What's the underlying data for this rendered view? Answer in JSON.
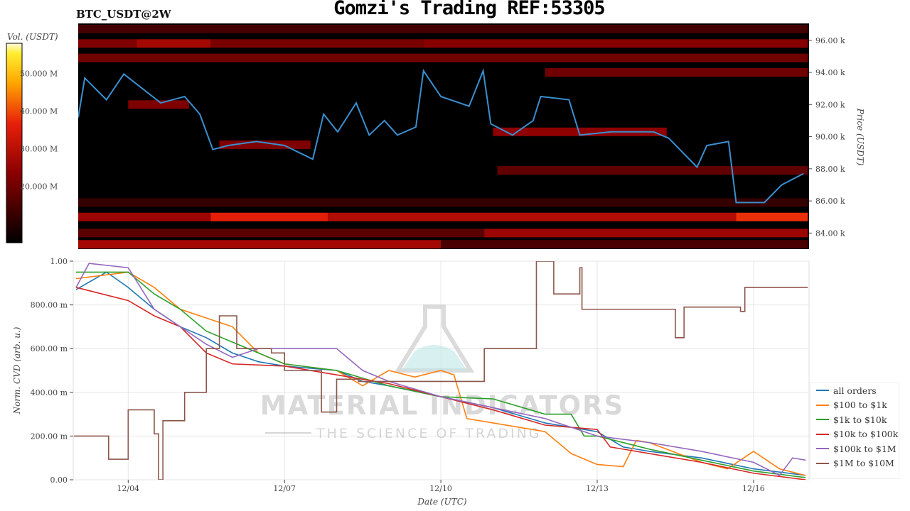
{
  "title": "Gomzi's Trading REF:53305",
  "subtitle": "BTC_USDT@2W",
  "watermark": {
    "line1": "MATERIAL INDICATORS",
    "line2": "THE SCIENCE OF TRADING"
  },
  "chart_data": [
    {
      "type": "heatmap",
      "name": "orderbook-heatmap",
      "ylabel": "Price (USDT)",
      "colorbar_label": "Vol. (USDT)",
      "colorbar_ticks": [
        "50.000 M",
        "40.000 M",
        "30.000 M",
        "20.000 M"
      ],
      "colorbar_tick_values": [
        50,
        40,
        30,
        20
      ],
      "colorbar_range": [
        5,
        58
      ],
      "xlim": [
        "12/03 00:00",
        "12/17 01:00"
      ],
      "ylim": [
        83.0,
        97.05
      ],
      "yticks": [
        84,
        86,
        88,
        90,
        92,
        94,
        96
      ],
      "ytick_labels": [
        "84.00 k",
        "86.00 k",
        "88.00 k",
        "90.00 k",
        "92.00 k",
        "94.00 k",
        "96.00 k"
      ],
      "line_color": "#3a8fd0",
      "bands": [
        {
          "price": 96.7,
          "from": "12/03 00:00",
          "to": "12/17 01:00",
          "vol": 14
        },
        {
          "price": 95.8,
          "from": "12/03 00:00",
          "to": "12/04 04:00",
          "vol": 22
        },
        {
          "price": 95.8,
          "from": "12/04 04:00",
          "to": "12/05 14:00",
          "vol": 27
        },
        {
          "price": 95.8,
          "from": "12/05 14:00",
          "to": "12/09 16:00",
          "vol": 21
        },
        {
          "price": 95.8,
          "from": "12/09 16:00",
          "to": "12/17 01:00",
          "vol": 23
        },
        {
          "price": 94.9,
          "from": "12/03 00:00",
          "to": "12/17 01:00",
          "vol": 20
        },
        {
          "price": 94.0,
          "from": "12/12 00:00",
          "to": "12/17 01:00",
          "vol": 20
        },
        {
          "price": 92.0,
          "from": "12/04 00:00",
          "to": "12/05 04:00",
          "vol": 22
        },
        {
          "price": 90.3,
          "from": "12/11 00:00",
          "to": "12/14 08:00",
          "vol": 24
        },
        {
          "price": 89.5,
          "from": "12/05 18:00",
          "to": "12/07 12:00",
          "vol": 22
        },
        {
          "price": 87.9,
          "from": "12/11 02:00",
          "to": "12/17 01:00",
          "vol": 18
        },
        {
          "price": 85.9,
          "from": "12/03 00:00",
          "to": "12/17 01:00",
          "vol": 12
        },
        {
          "price": 85.0,
          "from": "12/03 00:00",
          "to": "12/05 14:00",
          "vol": 26
        },
        {
          "price": 85.0,
          "from": "12/05 14:00",
          "to": "12/07 20:00",
          "vol": 36
        },
        {
          "price": 85.0,
          "from": "12/07 20:00",
          "to": "12/15 16:00",
          "vol": 29
        },
        {
          "price": 85.0,
          "from": "12/15 16:00",
          "to": "12/17 01:00",
          "vol": 38
        },
        {
          "price": 84.0,
          "from": "12/03 00:00",
          "to": "12/10 20:00",
          "vol": 17
        },
        {
          "price": 84.0,
          "from": "12/10 20:00",
          "to": "12/17 01:00",
          "vol": 26
        },
        {
          "price": 83.3,
          "from": "12/03 00:00",
          "to": "12/10 00:00",
          "vol": 27
        },
        {
          "price": 83.3,
          "from": "12/10 00:00",
          "to": "12/17 01:00",
          "vol": 15
        }
      ],
      "price_line": [
        [
          "12/03 01:00",
          91.2
        ],
        [
          "12/03 04:00",
          93.65
        ],
        [
          "12/03 14:00",
          92.3
        ],
        [
          "12/03 22:00",
          93.9
        ],
        [
          "12/04 06:30",
          93.0
        ],
        [
          "12/04 15:00",
          92.1
        ],
        [
          "12/05 02:00",
          92.5
        ],
        [
          "12/05 09:00",
          91.4
        ],
        [
          "12/05 15:00",
          89.2
        ],
        [
          "12/05 22:00",
          89.45
        ],
        [
          "12/06 11:00",
          89.7
        ],
        [
          "12/07 00:00",
          89.45
        ],
        [
          "12/07 13:00",
          88.6
        ],
        [
          "12/07 18:00",
          91.4
        ],
        [
          "12/08 00:30",
          90.3
        ],
        [
          "12/08 09:00",
          92.1
        ],
        [
          "12/08 15:00",
          90.1
        ],
        [
          "12/08 22:00",
          91.0
        ],
        [
          "12/09 04:00",
          90.1
        ],
        [
          "12/09 12:30",
          90.6
        ],
        [
          "12/09 16:00",
          94.1
        ],
        [
          "12/10 00:00",
          92.5
        ],
        [
          "12/10 13:00",
          91.9
        ],
        [
          "12/10 19:30",
          94.1
        ],
        [
          "12/10 23:00",
          90.8
        ],
        [
          "12/11 09:00",
          90.1
        ],
        [
          "12/11 18:30",
          91.0
        ],
        [
          "12/11 22:00",
          92.5
        ],
        [
          "12/12 11:00",
          92.3
        ],
        [
          "12/12 16:00",
          90.1
        ],
        [
          "12/13 06:30",
          90.3
        ],
        [
          "12/14 02:00",
          90.3
        ],
        [
          "12/14 09:00",
          89.9
        ],
        [
          "12/14 22:00",
          88.1
        ],
        [
          "12/15 02:30",
          89.45
        ],
        [
          "12/15 12:30",
          89.7
        ],
        [
          "12/15 16:00",
          85.9
        ],
        [
          "12/16 05:00",
          85.9
        ],
        [
          "12/16 13:00",
          87.0
        ],
        [
          "12/16 23:00",
          87.7
        ]
      ]
    },
    {
      "type": "line",
      "name": "cvd-chart",
      "xlabel": "Date (UTC)",
      "ylabel": "Norm. CVD (arb. u.)",
      "xlim": [
        "12/02 23:00",
        "12/17 01:00"
      ],
      "ylim": [
        0,
        1
      ],
      "xticks": [
        "12/04 00:00",
        "12/07 00:00",
        "12/10 00:00",
        "12/13 00:00",
        "12/16 00:00"
      ],
      "xtick_labels": [
        "12/04",
        "12/07",
        "12/10",
        "12/13",
        "12/16"
      ],
      "yticks": [
        0,
        0.2,
        0.4,
        0.6,
        0.8,
        1.0
      ],
      "ytick_labels": [
        "0.00",
        "200.00 m",
        "400.00 m",
        "600.00 m",
        "800.00 m",
        "1.00"
      ],
      "grid": true,
      "legend": "right",
      "series": [
        {
          "name": "all orders",
          "color": "#1f77b4",
          "points": [
            [
              "12/03 00:00",
              0.87
            ],
            [
              "12/03 14:00",
              0.95
            ],
            [
              "12/04 00:00",
              0.88
            ],
            [
              "12/04 12:00",
              0.78
            ],
            [
              "12/05 00:00",
              0.7
            ],
            [
              "12/05 12:00",
              0.65
            ],
            [
              "12/06 00:00",
              0.58
            ],
            [
              "12/06 12:00",
              0.54
            ],
            [
              "12/07 00:00",
              0.52
            ],
            [
              "12/08 00:00",
              0.5
            ],
            [
              "12/08 12:00",
              0.45
            ],
            [
              "12/09 00:00",
              0.43
            ],
            [
              "12/10 00:00",
              0.38
            ],
            [
              "12/11 00:00",
              0.33
            ],
            [
              "12/12 00:00",
              0.26
            ],
            [
              "12/13 00:00",
              0.22
            ],
            [
              "12/13 12:00",
              0.15
            ],
            [
              "12/14 00:00",
              0.13
            ],
            [
              "12/15 00:00",
              0.1
            ],
            [
              "12/16 00:00",
              0.05
            ],
            [
              "12/17 00:00",
              0.02
            ]
          ]
        },
        {
          "name": "$100 to $1k",
          "color": "#ff7f0e",
          "points": [
            [
              "12/03 00:00",
              0.92
            ],
            [
              "12/04 00:00",
              0.95
            ],
            [
              "12/04 12:00",
              0.88
            ],
            [
              "12/05 00:00",
              0.78
            ],
            [
              "12/06 00:00",
              0.7
            ],
            [
              "12/06 12:00",
              0.58
            ],
            [
              "12/07 00:00",
              0.53
            ],
            [
              "12/08 00:00",
              0.5
            ],
            [
              "12/08 12:00",
              0.43
            ],
            [
              "12/09 00:00",
              0.5
            ],
            [
              "12/09 12:00",
              0.47
            ],
            [
              "12/10 00:00",
              0.5
            ],
            [
              "12/10 06:00",
              0.48
            ],
            [
              "12/10 12:00",
              0.28
            ],
            [
              "12/11 00:00",
              0.26
            ],
            [
              "12/12 00:00",
              0.22
            ],
            [
              "12/12 12:00",
              0.12
            ],
            [
              "12/13 00:00",
              0.07
            ],
            [
              "12/13 12:00",
              0.06
            ],
            [
              "12/13 18:00",
              0.18
            ],
            [
              "12/14 00:00",
              0.17
            ],
            [
              "12/15 00:00",
              0.08
            ],
            [
              "12/15 12:00",
              0.05
            ],
            [
              "12/16 00:00",
              0.13
            ],
            [
              "12/16 12:00",
              0.05
            ],
            [
              "12/17 00:00",
              0.02
            ]
          ]
        },
        {
          "name": "$1k to $10k",
          "color": "#2ca02c",
          "points": [
            [
              "12/03 00:00",
              0.95
            ],
            [
              "12/04 00:00",
              0.95
            ],
            [
              "12/04 12:00",
              0.85
            ],
            [
              "12/05 00:00",
              0.78
            ],
            [
              "12/05 12:00",
              0.68
            ],
            [
              "12/06 00:00",
              0.63
            ],
            [
              "12/06 12:00",
              0.58
            ],
            [
              "12/07 00:00",
              0.53
            ],
            [
              "12/08 00:00",
              0.5
            ],
            [
              "12/09 00:00",
              0.43
            ],
            [
              "12/10 00:00",
              0.38
            ],
            [
              "12/11 00:00",
              0.37
            ],
            [
              "12/12 00:00",
              0.3
            ],
            [
              "12/12 12:00",
              0.3
            ],
            [
              "12/12 18:00",
              0.2
            ],
            [
              "12/13 00:00",
              0.2
            ],
            [
              "12/14 00:00",
              0.14
            ],
            [
              "12/15 00:00",
              0.09
            ],
            [
              "12/16 00:00",
              0.04
            ],
            [
              "12/17 00:00",
              0.01
            ]
          ]
        },
        {
          "name": "$10k to $100k",
          "color": "#d62728",
          "points": [
            [
              "12/03 00:00",
              0.88
            ],
            [
              "12/04 00:00",
              0.82
            ],
            [
              "12/04 12:00",
              0.75
            ],
            [
              "12/05 00:00",
              0.7
            ],
            [
              "12/05 12:00",
              0.58
            ],
            [
              "12/06 00:00",
              0.53
            ],
            [
              "12/07 00:00",
              0.52
            ],
            [
              "12/08 00:00",
              0.48
            ],
            [
              "12/09 00:00",
              0.44
            ],
            [
              "12/10 00:00",
              0.38
            ],
            [
              "12/11 00:00",
              0.32
            ],
            [
              "12/12 00:00",
              0.25
            ],
            [
              "12/13 00:00",
              0.23
            ],
            [
              "12/13 06:00",
              0.15
            ],
            [
              "12/14 00:00",
              0.12
            ],
            [
              "12/15 00:00",
              0.08
            ],
            [
              "12/16 00:00",
              0.03
            ],
            [
              "12/17 00:00",
              0.0
            ]
          ]
        },
        {
          "name": "$100k to $1M",
          "color": "#9467bd",
          "points": [
            [
              "12/03 00:00",
              0.88
            ],
            [
              "12/03 06:00",
              0.99
            ],
            [
              "12/04 00:00",
              0.97
            ],
            [
              "12/04 12:00",
              0.78
            ],
            [
              "12/05 00:00",
              0.7
            ],
            [
              "12/05 12:00",
              0.62
            ],
            [
              "12/06 00:00",
              0.56
            ],
            [
              "12/06 12:00",
              0.6
            ],
            [
              "12/07 00:00",
              0.6
            ],
            [
              "12/08 00:00",
              0.6
            ],
            [
              "12/08 12:00",
              0.5
            ],
            [
              "12/09 00:00",
              0.45
            ],
            [
              "12/10 00:00",
              0.38
            ],
            [
              "12/11 00:00",
              0.33
            ],
            [
              "12/12 00:00",
              0.28
            ],
            [
              "12/13 00:00",
              0.2
            ],
            [
              "12/14 00:00",
              0.17
            ],
            [
              "12/15 00:00",
              0.13
            ],
            [
              "12/16 00:00",
              0.08
            ],
            [
              "12/16 12:00",
              0.02
            ],
            [
              "12/16 18:00",
              0.1
            ],
            [
              "12/17 00:00",
              0.09
            ]
          ]
        },
        {
          "name": "$1M to $10M",
          "color": "#8c564b",
          "step": true,
          "points": [
            [
              "12/02 23:00",
              0.2
            ],
            [
              "12/03 15:00",
              0.094
            ],
            [
              "12/04 00:00",
              0.32
            ],
            [
              "12/04 12:00",
              0.21
            ],
            [
              "12/04 14:00",
              0.0
            ],
            [
              "12/04 16:00",
              0.27
            ],
            [
              "12/05 02:00",
              0.4
            ],
            [
              "12/05 12:00",
              0.6
            ],
            [
              "12/05 18:00",
              0.75
            ],
            [
              "12/06 02:00",
              0.6
            ],
            [
              "12/06 18:00",
              0.58
            ],
            [
              "12/07 00:00",
              0.5
            ],
            [
              "12/07 17:00",
              0.31
            ],
            [
              "12/08 00:00",
              0.46
            ],
            [
              "12/08 10:00",
              0.45
            ],
            [
              "12/10 20:00",
              0.6
            ],
            [
              "12/11 20:00",
              1.0
            ],
            [
              "12/12 04:00",
              0.85
            ],
            [
              "12/12 16:00",
              0.97
            ],
            [
              "12/12 17:00",
              0.78
            ],
            [
              "12/14 12:00",
              0.65
            ],
            [
              "12/14 16:00",
              0.79
            ],
            [
              "12/15 18:00",
              0.77
            ],
            [
              "12/15 20:00",
              0.88
            ],
            [
              "12/17 01:00",
              0.88
            ]
          ]
        }
      ]
    }
  ]
}
